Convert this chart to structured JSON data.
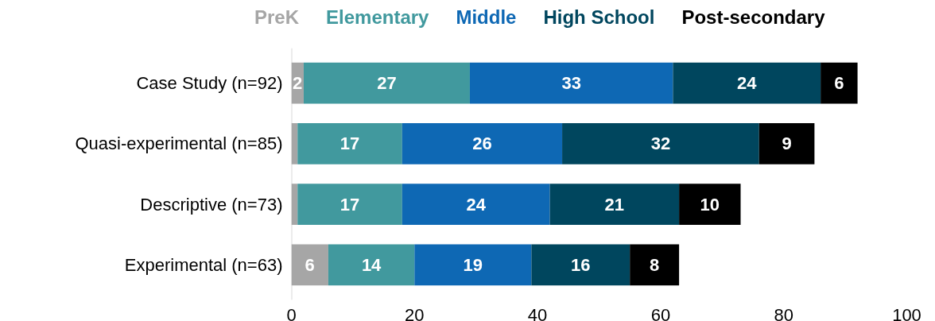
{
  "chart_data": {
    "type": "bar",
    "orientation": "horizontal",
    "stacked": true,
    "legend": "top",
    "categories": [
      "Case Study (n=92)",
      "Quasi-experimental (n=85)",
      "Descriptive (n=73)",
      "Experimental (n=63)"
    ],
    "series": [
      {
        "name": "PreK",
        "color": "#a6a6a6",
        "values": [
          2,
          1,
          1,
          6
        ],
        "value_labels": [
          "2",
          null,
          null,
          "6"
        ]
      },
      {
        "name": "Elementary",
        "color": "#41999e",
        "values": [
          27,
          17,
          17,
          14
        ],
        "value_labels": [
          "27",
          "17",
          "17",
          "14"
        ]
      },
      {
        "name": "Middle",
        "color": "#0e68b4",
        "values": [
          33,
          26,
          24,
          19
        ],
        "value_labels": [
          "33",
          "26",
          "24",
          "19"
        ]
      },
      {
        "name": "High School",
        "color": "#00465e",
        "values": [
          24,
          32,
          21,
          16
        ],
        "value_labels": [
          "24",
          "32",
          "21",
          "16"
        ]
      },
      {
        "name": "Post-secondary",
        "color": "#000000",
        "values": [
          6,
          9,
          10,
          8
        ],
        "value_labels": [
          "6",
          "9",
          "10",
          "8"
        ]
      }
    ],
    "xlim": [
      0,
      100
    ],
    "xticks": [
      0,
      20,
      40,
      60,
      80,
      100
    ],
    "grid": false
  }
}
